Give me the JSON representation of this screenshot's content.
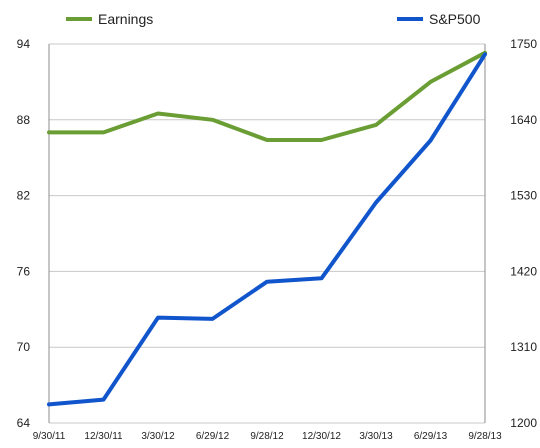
{
  "chart_data": {
    "type": "line",
    "categories": [
      "9/30/11",
      "12/30/11",
      "3/30/12",
      "6/29/12",
      "9/28/12",
      "12/30/12",
      "3/30/13",
      "6/29/13",
      "9/28/13"
    ],
    "series": [
      {
        "name": "Earnings",
        "axis": "left",
        "color": "#6a9e34",
        "values": [
          87.0,
          87.0,
          88.5,
          88.0,
          86.4,
          86.4,
          87.6,
          91.0,
          93.3
        ]
      },
      {
        "name": "S&P500",
        "axis": "right",
        "color": "#1155cc",
        "values": [
          1227,
          1234,
          1353,
          1351,
          1405,
          1410,
          1520,
          1610,
          1735
        ]
      }
    ],
    "left_axis": {
      "ylim": [
        64,
        94
      ],
      "ticks": [
        "64",
        "70",
        "76",
        "82",
        "88",
        "94"
      ]
    },
    "right_axis": {
      "ylim": [
        1200,
        1750
      ],
      "ticks": [
        "1200",
        "1310",
        "1420",
        "1530",
        "1640",
        "1750"
      ]
    },
    "grid": "horizontal",
    "legend": "top"
  }
}
